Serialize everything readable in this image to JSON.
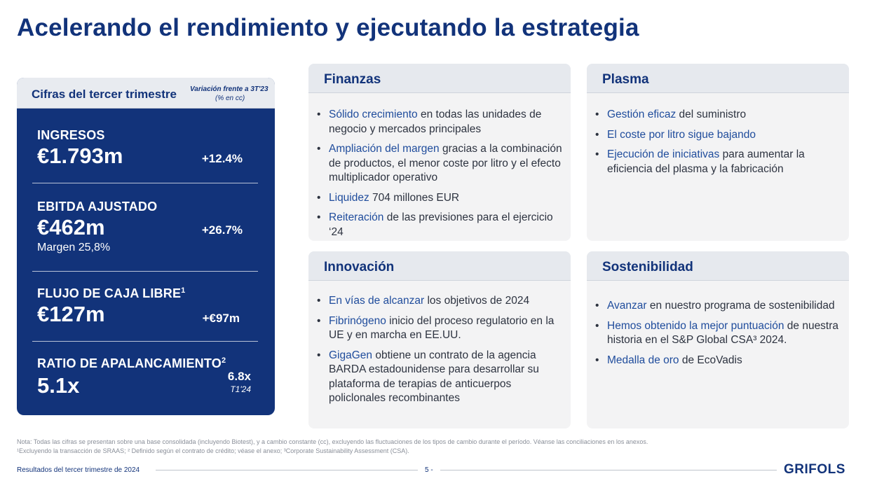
{
  "title": "Acelerando el rendimiento y ejecutando la estrategia",
  "kpi_panel": {
    "header": "Cifras del tercer trimestre",
    "variation_note": "Variación frente a 3T'23",
    "unit_note": "(% en cc)",
    "items": [
      {
        "label": "INGRESOS",
        "sup": "",
        "value": "€1.793m",
        "change": "+12.4%",
        "sub": ""
      },
      {
        "label": "EBITDA AJUSTADO",
        "sup": "",
        "value": "€462m",
        "change": "+26.7%",
        "sub": "Margen 25,8%"
      },
      {
        "label": "FLUJO DE CAJA LIBRE",
        "sup": "1",
        "value": "€127m",
        "change": "+€97m",
        "sub": ""
      },
      {
        "label": "RATIO DE APALANCAMIENTO",
        "sup": "2",
        "value": "5.1x",
        "change": "6.8x",
        "change_sub": "T1'24"
      }
    ]
  },
  "cards": {
    "finanzas": {
      "title": "Finanzas",
      "bullets": [
        {
          "hl": "Sólido crecimiento",
          "rest": " en todas las unidades de negocio y mercados principales"
        },
        {
          "hl": "Ampliación del margen",
          "rest": " gracias a la combinación de productos, el menor coste por litro y el efecto multiplicador operativo"
        },
        {
          "hl": "Liquidez",
          "rest": " 704 millones EUR"
        },
        {
          "hl": "Reiteración",
          "rest": " de las previsiones para el ejercicio ‘24"
        }
      ]
    },
    "plasma": {
      "title": "Plasma",
      "bullets": [
        {
          "hl": "Gestión eficaz",
          "rest": " del suministro"
        },
        {
          "hl": "El coste por litro sigue bajando",
          "rest": ""
        },
        {
          "hl": "Ejecución de iniciativas",
          "rest": " para aumentar la eficiencia del plasma y la fabricación"
        }
      ]
    },
    "innovacion": {
      "title": "Innovación",
      "bullets": [
        {
          "hl": "En vías de alcanzar",
          "rest": " los objetivos de 2024"
        },
        {
          "hl": "Fibrinógeno",
          "rest": " inicio del proceso regulatorio en la UE y en marcha en EE.UU."
        },
        {
          "hl": "GigaGen",
          "rest": " obtiene un contrato de la agencia BARDA estadounidense para desarrollar su plataforma de terapias de anticuerpos policlonales recombinantes"
        }
      ]
    },
    "sostenibilidad": {
      "title": "Sostenibilidad",
      "bullets": [
        {
          "hl": "Avanzar",
          "rest": " en nuestro programa de sostenibilidad"
        },
        {
          "hl": "Hemos obtenido la mejor puntuación",
          "rest": " de nuestra historia en el S&P Global CSA³ 2024."
        },
        {
          "hl": "Medalla de oro",
          "rest": " de EcoVadis"
        }
      ]
    }
  },
  "footnotes": {
    "line1": "Nota: Todas las cifras se presentan sobre una base consolidada (incluyendo Biotest), y a cambio constante (cc), excluyendo las fluctuaciones de los tipos de cambio durante el período. Véanse las conciliaciones en los anexos.",
    "line2": "¹Excluyendo la transacción de SRAAS; ² Definido según el contrato de crédito; véase el anexo; ³Corporate Sustainability Assessment (CSA)."
  },
  "footer": {
    "left": "Resultados del tercer trimestre de 2024",
    "page": "5 -",
    "logo": "GRIFOLS"
  },
  "colors": {
    "navy": "#12337a",
    "highlight": "#1f4c9c",
    "card_bg": "#f3f3f4"
  }
}
